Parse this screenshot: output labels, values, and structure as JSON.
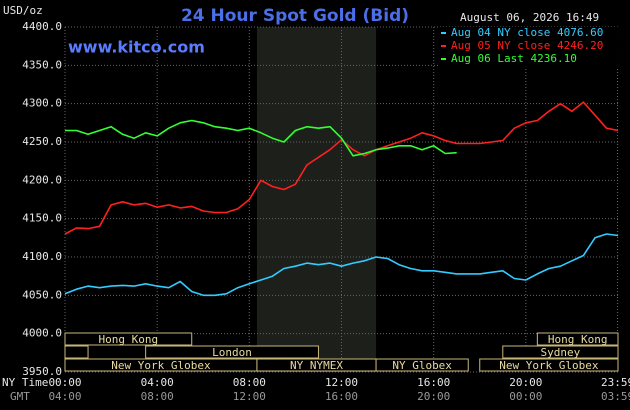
{
  "chart_data": {
    "type": "line",
    "title": "24 Hour Spot Gold (Bid)",
    "unit_label": "USD/oz",
    "timestamp": "August 06, 2026 16:49",
    "site": "www.kitco.com",
    "x_axis_label": "NY Time",
    "x2_axis_label": "GMT",
    "xlim": [
      0,
      24
    ],
    "xticks": [
      {
        "value": 0,
        "label": "00:00"
      },
      {
        "value": 4,
        "label": "04:00"
      },
      {
        "value": 8,
        "label": "08:00"
      },
      {
        "value": 12,
        "label": "12:00"
      },
      {
        "value": 16,
        "label": "16:00"
      },
      {
        "value": 20,
        "label": "20:00"
      },
      {
        "value": 23.98,
        "label": "23:59"
      }
    ],
    "x2ticks": [
      "04:00",
      "08:00",
      "12:00",
      "16:00",
      "20:00",
      "00:00",
      "03:59"
    ],
    "ylim": [
      3950,
      4400
    ],
    "yticks": [
      {
        "value": 3950,
        "label": "3950.0"
      },
      {
        "value": 4000,
        "label": "4000.0"
      },
      {
        "value": 4050,
        "label": "4050.0"
      },
      {
        "value": 4100,
        "label": "4100.0"
      },
      {
        "value": 4150,
        "label": "4150.0"
      },
      {
        "value": 4200,
        "label": "4200.0"
      },
      {
        "value": 4250,
        "label": "4250.0"
      },
      {
        "value": 4300,
        "label": "4300.0"
      },
      {
        "value": 4350,
        "label": "4350.0"
      },
      {
        "value": 4400,
        "label": "4400.0"
      }
    ],
    "grid": true,
    "shaded": [
      8.33,
      13.5
    ],
    "x": [
      0,
      0.5,
      1,
      1.5,
      2,
      2.5,
      3,
      3.5,
      4,
      4.5,
      5,
      5.5,
      6,
      6.5,
      7,
      7.5,
      8,
      8.5,
      9,
      9.5,
      10,
      10.5,
      11,
      11.5,
      12,
      12.5,
      13,
      13.5,
      14,
      14.5,
      15,
      15.5,
      16,
      16.5,
      17,
      17.5,
      18,
      18.5,
      19,
      19.5,
      20,
      20.5,
      21,
      21.5,
      22,
      22.5,
      23,
      23.5,
      24
    ],
    "series": [
      {
        "name": "Aug 04 NY close 4076.60",
        "color": "#33ccff",
        "values": [
          4052,
          4058,
          4062,
          4060,
          4062,
          4063,
          4062,
          4065,
          4062,
          4060,
          4068,
          4055,
          4050,
          4050,
          4052,
          4060,
          4065,
          4070,
          4075,
          4085,
          4088,
          4092,
          4090,
          4092,
          4088,
          4092,
          4095,
          4100,
          4098,
          4090,
          4085,
          4082,
          4082,
          4080,
          4078,
          4078,
          4078,
          4080,
          4082,
          4072,
          4070,
          4078,
          4085,
          4088,
          4095,
          4102,
          4125,
          4130,
          4128
        ]
      },
      {
        "name": "Aug 05 NY close 4246.20",
        "color": "#ff2020",
        "values": [
          4130,
          4138,
          4137,
          4140,
          4168,
          4172,
          4168,
          4170,
          4165,
          4168,
          4164,
          4166,
          4160,
          4158,
          4158,
          4163,
          4175,
          4200,
          4192,
          4188,
          4195,
          4220,
          4230,
          4240,
          4253,
          4240,
          4232,
          4240,
          4245,
          4250,
          4255,
          4262,
          4258,
          4252,
          4248,
          4248,
          4248,
          4250,
          4252,
          4268,
          4275,
          4278,
          4290,
          4300,
          4290,
          4302,
          4285,
          4268,
          4265
        ]
      },
      {
        "name": "Aug 06 Last 4236.10",
        "color": "#33ff33",
        "values": [
          4265,
          4265,
          4260,
          4265,
          4270,
          4260,
          4255,
          4262,
          4258,
          4268,
          4275,
          4278,
          4275,
          4270,
          4268,
          4265,
          4268,
          4262,
          4255,
          4250,
          4265,
          4270,
          4268,
          4270,
          4255,
          4232,
          4235,
          4240,
          4242,
          4245,
          4245,
          4240,
          4245,
          4235,
          4236.1,
          null,
          null,
          null,
          null,
          null,
          null,
          null,
          null,
          null,
          null,
          null,
          null,
          null,
          null
        ]
      }
    ],
    "sessions": [
      {
        "label": "Hong Kong",
        "start": 0,
        "end": 5.5,
        "row": 0
      },
      {
        "label": null,
        "start": 0,
        "end": 1,
        "row": 1
      },
      {
        "label": "London",
        "start": 3.5,
        "end": 11,
        "row": 1
      },
      {
        "label": "New York Globex",
        "start": 0,
        "end": 8.33,
        "row": 2
      },
      {
        "label": "NY NYMEX",
        "start": 8.33,
        "end": 13.5,
        "row": 2
      },
      {
        "label": "NY Globex",
        "start": 13.5,
        "end": 17.5,
        "row": 2
      },
      {
        "label": "Hong Kong",
        "start": 20.5,
        "end": 24,
        "row": 0
      },
      {
        "label": "Sydney",
        "start": 19,
        "end": 24,
        "row": 1
      },
      {
        "label": "New York Globex",
        "start": 18,
        "end": 24,
        "row": 2
      }
    ]
  }
}
